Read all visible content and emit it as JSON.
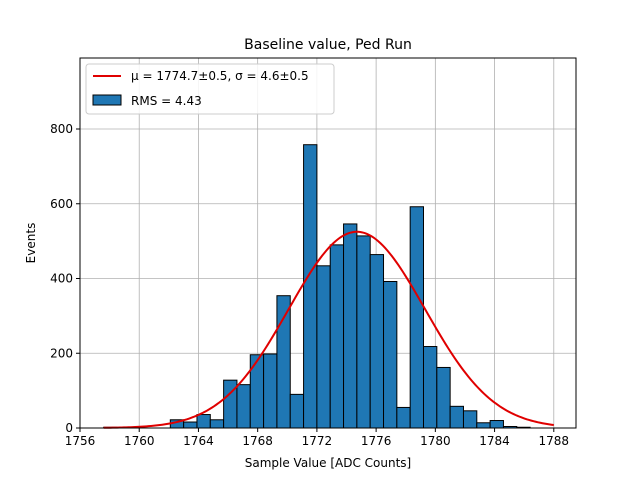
{
  "chart_data": {
    "type": "bar",
    "title": "Baseline value, Ped Run",
    "xlabel": "Sample Value [ADC Counts]",
    "ylabel": "Events",
    "xlim": [
      1756,
      1789.5
    ],
    "ylim": [
      0,
      990
    ],
    "grid": true,
    "legend_position": "top-left",
    "x_ticks": [
      "1756",
      "1760",
      "1764",
      "1768",
      "1772",
      "1776",
      "1780",
      "1784",
      "1788"
    ],
    "y_ticks": [
      "0",
      "200",
      "400",
      "600",
      "800"
    ],
    "bin_width": 0.9,
    "bins": [
      {
        "x": 1757.6,
        "value": 2
      },
      {
        "x": 1762.1,
        "value": 22
      },
      {
        "x": 1763.0,
        "value": 16
      },
      {
        "x": 1763.9,
        "value": 36
      },
      {
        "x": 1764.8,
        "value": 22
      },
      {
        "x": 1765.7,
        "value": 128
      },
      {
        "x": 1766.6,
        "value": 116
      },
      {
        "x": 1767.5,
        "value": 196
      },
      {
        "x": 1768.4,
        "value": 198
      },
      {
        "x": 1769.3,
        "value": 354
      },
      {
        "x": 1770.2,
        "value": 90
      },
      {
        "x": 1771.1,
        "value": 758
      },
      {
        "x": 1772.0,
        "value": 434
      },
      {
        "x": 1772.9,
        "value": 490
      },
      {
        "x": 1773.8,
        "value": 546
      },
      {
        "x": 1774.7,
        "value": 514
      },
      {
        "x": 1775.6,
        "value": 464
      },
      {
        "x": 1776.5,
        "value": 392
      },
      {
        "x": 1777.4,
        "value": 55
      },
      {
        "x": 1778.3,
        "value": 592
      },
      {
        "x": 1779.2,
        "value": 218
      },
      {
        "x": 1780.1,
        "value": 162
      },
      {
        "x": 1781.0,
        "value": 58
      },
      {
        "x": 1781.9,
        "value": 46
      },
      {
        "x": 1782.8,
        "value": 14
      },
      {
        "x": 1783.7,
        "value": 20
      },
      {
        "x": 1784.6,
        "value": 4
      },
      {
        "x": 1785.5,
        "value": 2
      }
    ],
    "fit_curve": {
      "mu": 1774.7,
      "sigma": 4.6,
      "amplitude": 525,
      "x_range": [
        1757.6,
        1788.0
      ],
      "color": "#e00000"
    },
    "colors": {
      "bar_fill": "#1f77b4",
      "bar_edge": "#000000",
      "grid": "#b0b0b0",
      "fit_line": "#e00000"
    },
    "legend": [
      {
        "label": "μ = 1774.7±0.5, σ = 4.6±0.5",
        "kind": "line"
      },
      {
        "label": "RMS = 4.43",
        "kind": "patch"
      }
    ]
  }
}
